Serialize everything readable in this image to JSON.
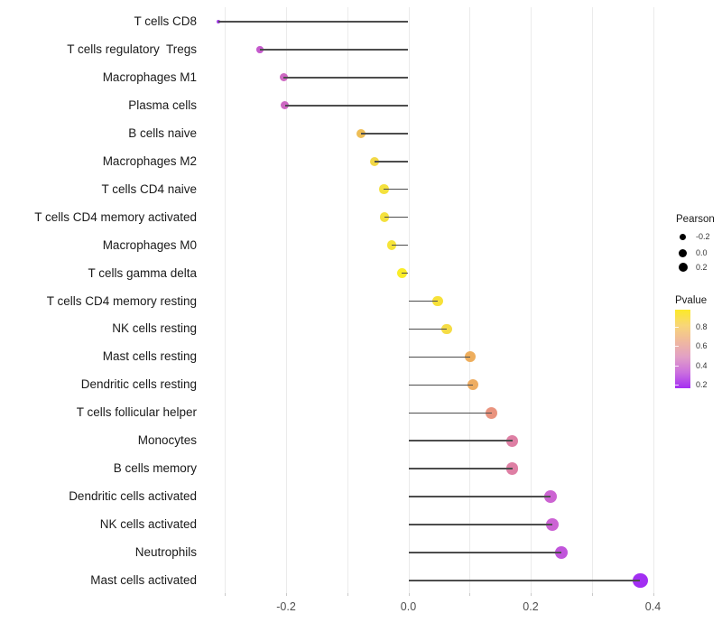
{
  "chart_data": {
    "type": "scatter",
    "variant": "lollipop",
    "orientation": "horizontal",
    "title": "",
    "xlabel": "",
    "ylabel": "",
    "x_ticks": [
      {
        "label": "-0.2",
        "value": -0.2
      },
      {
        "label": "0.0",
        "value": 0.0
      },
      {
        "label": "0.2",
        "value": 0.2
      },
      {
        "label": "0.4",
        "value": 0.4
      }
    ],
    "xlim": [
      -0.335,
      0.41
    ],
    "gridline_values": [
      -0.3,
      -0.2,
      -0.1,
      0.0,
      0.1,
      0.2,
      0.3,
      0.4
    ],
    "grid": "vertical-only",
    "baseline_value": 0.0,
    "stem_color": "#4d4d4d",
    "gridline_color": "#ebebeb",
    "points": [
      {
        "category": "T cells CD8",
        "pearson": -0.31,
        "color": "#a33be8",
        "diameter": 4
      },
      {
        "category": "T cells regulatory  Tregs",
        "pearson": -0.243,
        "color": "#c55acd",
        "diameter": 7.5
      },
      {
        "category": "Macrophages M1",
        "pearson": -0.204,
        "color": "#cd68c2",
        "diameter": 9
      },
      {
        "category": "Plasma cells",
        "pearson": -0.202,
        "color": "#cd68c2",
        "diameter": 9
      },
      {
        "category": "B cells naive",
        "pearson": -0.077,
        "color": "#eebe56",
        "diameter": 10
      },
      {
        "category": "Macrophages M2",
        "pearson": -0.055,
        "color": "#f2d846",
        "diameter": 10.5
      },
      {
        "category": "T cells CD4 naive",
        "pearson": -0.04,
        "color": "#f4e13e",
        "diameter": 10.5
      },
      {
        "category": "T cells CD4 memory activated",
        "pearson": -0.039,
        "color": "#f4e13e",
        "diameter": 10.5
      },
      {
        "category": "Macrophages M0",
        "pearson": -0.027,
        "color": "#f6e438",
        "diameter": 10.5
      },
      {
        "category": "T cells gamma delta",
        "pearson": -0.011,
        "color": "#faed28",
        "diameter": 11
      },
      {
        "category": "T cells CD4 memory resting",
        "pearson": 0.048,
        "color": "#f7e139",
        "diameter": 11.5
      },
      {
        "category": "NK cells resting",
        "pearson": 0.063,
        "color": "#f5dc45",
        "diameter": 11.5
      },
      {
        "category": "Mast cells resting",
        "pearson": 0.101,
        "color": "#eeae5d",
        "diameter": 12
      },
      {
        "category": "Dendritic cells resting",
        "pearson": 0.105,
        "color": "#eead62",
        "diameter": 12
      },
      {
        "category": "T cells follicular helper",
        "pearson": 0.136,
        "color": "#e9937e",
        "diameter": 13
      },
      {
        "category": "Monocytes",
        "pearson": 0.17,
        "color": "#de7fa4",
        "diameter": 13.5
      },
      {
        "category": "B cells memory",
        "pearson": 0.17,
        "color": "#de7fa4",
        "diameter": 13.5
      },
      {
        "category": "Dendritic cells activated",
        "pearson": 0.233,
        "color": "#cc64d2",
        "diameter": 14
      },
      {
        "category": "NK cells activated",
        "pearson": 0.235,
        "color": "#cc63d4",
        "diameter": 14
      },
      {
        "category": "Neutrophils",
        "pearson": 0.25,
        "color": "#c155db",
        "diameter": 14.5
      },
      {
        "category": "Mast cells activated",
        "pearson": 0.379,
        "color": "#a22ff2",
        "diameter": 16.5
      }
    ],
    "legend": {
      "size_legend": {
        "title": "Pearson",
        "dot_color": "#000000",
        "items": [
          {
            "label": "-0.2",
            "diameter": 7
          },
          {
            "label": "0.0",
            "diameter": 9
          },
          {
            "label": "0.2",
            "diameter": 10
          }
        ]
      },
      "color_legend": {
        "title": "Pvalue",
        "tick_labels": [
          "0.8",
          "0.6",
          "0.4",
          "0.2"
        ],
        "gradient_stops": [
          "#fcea27",
          "#f8d678",
          "#f0b99e",
          "#e2a0c5",
          "#cb70de",
          "#a52ff2"
        ]
      }
    }
  }
}
